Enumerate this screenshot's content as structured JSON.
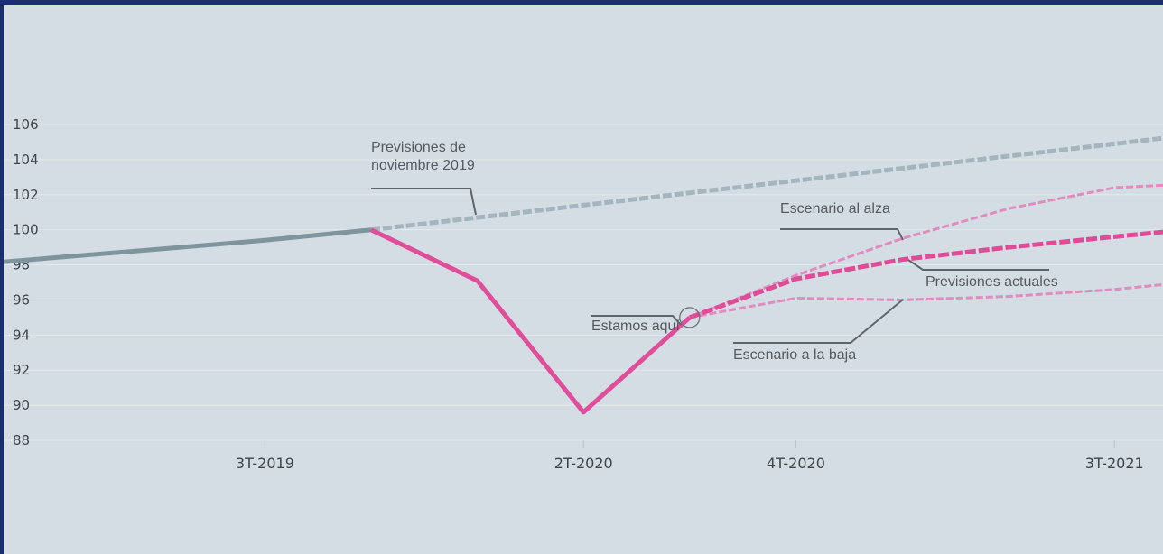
{
  "chart_data": {
    "type": "line",
    "title": "",
    "xlabel": "",
    "ylabel": "",
    "ylim": [
      88,
      106
    ],
    "y_ticks": [
      "106",
      "104",
      "102",
      "100",
      "98",
      "96",
      "94",
      "92",
      "90",
      "88"
    ],
    "x_ticks": [
      "3T-2019",
      "2T-2020",
      "4T-2020",
      "3T-2021"
    ],
    "x_tick_quarters": [
      2019.5,
      2020.25,
      2020.75,
      2021.5
    ],
    "grid": true,
    "series": [
      {
        "name": "",
        "role": "historico",
        "color": "#7f959e",
        "x": [
          2018.75,
          2019.0,
          2019.25,
          2019.5,
          2019.75
        ],
        "y": [
          97.9,
          98.4,
          98.9,
          99.4,
          100.0
        ]
      },
      {
        "name": "Previsiones de noviembre 2019",
        "color": "#a4b5bd",
        "dashed": true,
        "x": [
          2019.75,
          2020.0,
          2020.25,
          2020.5,
          2020.75,
          2021.0,
          2021.25,
          2021.5,
          2021.75
        ],
        "y": [
          100.0,
          100.7,
          101.4,
          102.1,
          102.8,
          103.5,
          104.2,
          104.9,
          105.6
        ]
      },
      {
        "name": "",
        "role": "real",
        "color": "#e04d9a",
        "x": [
          2019.75,
          2020.0,
          2020.25,
          2020.5
        ],
        "y": [
          100.0,
          97.1,
          89.6,
          95.0
        ]
      },
      {
        "name": "Previsiones actuales",
        "color": "#df4b97",
        "dashed": true,
        "x": [
          2020.5,
          2020.75,
          2021.0,
          2021.25,
          2021.5,
          2021.75
        ],
        "y": [
          95.0,
          97.2,
          98.3,
          99.0,
          99.6,
          100.2
        ]
      },
      {
        "name": "Escenario al alza",
        "color": "#e08cc0",
        "dashed": true,
        "x": [
          2020.5,
          2020.75,
          2021.0,
          2021.25,
          2021.5,
          2021.75
        ],
        "y": [
          95.0,
          97.4,
          99.5,
          101.2,
          102.4,
          102.7
        ]
      },
      {
        "name": "Escenario a la baja",
        "color": "#e08cc0",
        "dashed": true,
        "x": [
          2020.5,
          2020.75,
          2021.0,
          2021.25,
          2021.5,
          2021.75
        ],
        "y": [
          95.0,
          96.1,
          96.0,
          96.2,
          96.6,
          97.2
        ]
      }
    ],
    "annotations": {
      "prev_nov_line1": "Previsiones de",
      "prev_nov_line2": "noviembre 2019",
      "alza": "Escenario al alza",
      "actuales": "Previsiones actuales",
      "aqui": "Estamos aquí",
      "baja": "Escenario a la baja"
    }
  }
}
